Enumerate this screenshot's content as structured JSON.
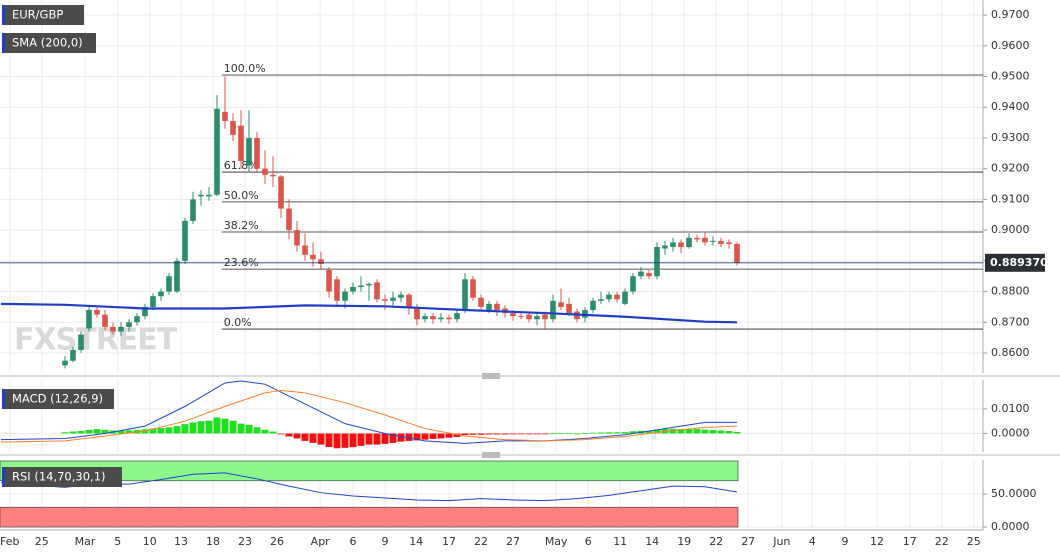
{
  "chart_data": [
    {
      "type": "candlestick",
      "legend": [
        "EUR/GBP",
        "SMA (200,0)"
      ],
      "watermark": "FXSTREET",
      "xlim": [
        -8.125,
        114.75
      ],
      "ylim": [
        0.8535,
        0.9749
      ],
      "yticks": [
        {
          "value": 0.86,
          "label": "0.8600"
        },
        {
          "value": 0.87,
          "label": "0.8700"
        },
        {
          "value": 0.88,
          "label": "0.8800"
        },
        {
          "value": 0.89,
          "label": "0.8900"
        },
        {
          "value": 0.9,
          "label": "0.9000"
        },
        {
          "value": 0.91,
          "label": "0.9100"
        },
        {
          "value": 0.92,
          "label": "0.9200"
        },
        {
          "value": 0.93,
          "label": "0.9300"
        },
        {
          "value": 0.94,
          "label": "0.9400"
        },
        {
          "value": 0.95,
          "label": "0.9500"
        },
        {
          "value": 0.96,
          "label": "0.9600"
        },
        {
          "value": 0.97,
          "label": "0.9700"
        }
      ],
      "up_color": "#2e8c6e",
      "down_color": "#d9574a",
      "candles": [
        [
          0.856,
          0.859,
          0.855,
          0.8575
        ],
        [
          0.8575,
          0.862,
          0.857,
          0.861
        ],
        [
          0.861,
          0.867,
          0.86,
          0.866
        ],
        [
          0.868,
          0.875,
          0.867,
          0.874
        ],
        [
          0.874,
          0.875,
          0.8715,
          0.8725
        ],
        [
          0.8725,
          0.874,
          0.8675,
          0.8685
        ],
        [
          0.8685,
          0.87,
          0.866,
          0.867
        ],
        [
          0.867,
          0.87,
          0.8655,
          0.8685
        ],
        [
          0.8685,
          0.871,
          0.867,
          0.87
        ],
        [
          0.87,
          0.873,
          0.869,
          0.872
        ],
        [
          0.872,
          0.876,
          0.871,
          0.875
        ],
        [
          0.875,
          0.8795,
          0.874,
          0.8785
        ],
        [
          0.8785,
          0.881,
          0.877,
          0.88
        ],
        [
          0.88,
          0.886,
          0.879,
          0.885
        ],
        [
          0.88,
          0.891,
          0.8795,
          0.89
        ],
        [
          0.89,
          0.904,
          0.889,
          0.903
        ],
        [
          0.903,
          0.9125,
          0.902,
          0.91
        ],
        [
          0.911,
          0.913,
          0.908,
          0.9115
        ],
        [
          0.911,
          0.914,
          0.9095,
          0.9115
        ],
        [
          0.9115,
          0.944,
          0.911,
          0.9395
        ],
        [
          0.9385,
          0.95,
          0.933,
          0.9355
        ],
        [
          0.9355,
          0.938,
          0.929,
          0.931
        ],
        [
          0.934,
          0.939,
          0.92,
          0.9225
        ],
        [
          0.921,
          0.939,
          0.919,
          0.93
        ],
        [
          0.93,
          0.932,
          0.919,
          0.92
        ],
        [
          0.92,
          0.926,
          0.915,
          0.918
        ],
        [
          0.918,
          0.924,
          0.914,
          0.9175
        ],
        [
          0.9175,
          0.918,
          0.904,
          0.907
        ],
        [
          0.907,
          0.91,
          0.897,
          0.9
        ],
        [
          0.9,
          0.903,
          0.893,
          0.895
        ],
        [
          0.895,
          0.899,
          0.89,
          0.892
        ],
        [
          0.892,
          0.896,
          0.888,
          0.8905
        ],
        [
          0.8905,
          0.893,
          0.887,
          0.889
        ],
        [
          0.887,
          0.888,
          0.878,
          0.88
        ],
        [
          0.884,
          0.885,
          0.875,
          0.877
        ],
        [
          0.877,
          0.881,
          0.8745,
          0.88
        ],
        [
          0.88,
          0.883,
          0.879,
          0.8815
        ],
        [
          0.8815,
          0.885,
          0.88,
          0.882
        ],
        [
          0.882,
          0.883,
          0.877,
          0.8825
        ],
        [
          0.883,
          0.884,
          0.8765,
          0.8775
        ],
        [
          0.8775,
          0.879,
          0.874,
          0.877
        ],
        [
          0.877,
          0.88,
          0.8755,
          0.878
        ],
        [
          0.878,
          0.88,
          0.8765,
          0.879
        ],
        [
          0.879,
          0.8795,
          0.8725,
          0.8745
        ],
        [
          0.8745,
          0.876,
          0.869,
          0.871
        ],
        [
          0.871,
          0.873,
          0.87,
          0.872
        ],
        [
          0.872,
          0.873,
          0.8695,
          0.871
        ],
        [
          0.871,
          0.873,
          0.87,
          0.8715
        ],
        [
          0.8715,
          0.8725,
          0.8695,
          0.871
        ],
        [
          0.871,
          0.874,
          0.87,
          0.873
        ],
        [
          0.874,
          0.886,
          0.873,
          0.884
        ],
        [
          0.884,
          0.885,
          0.877,
          0.878
        ],
        [
          0.878,
          0.879,
          0.8735,
          0.875
        ],
        [
          0.874,
          0.877,
          0.873,
          0.876
        ],
        [
          0.876,
          0.877,
          0.872,
          0.874
        ],
        [
          0.8745,
          0.8755,
          0.8715,
          0.873
        ],
        [
          0.873,
          0.874,
          0.8705,
          0.872
        ],
        [
          0.872,
          0.8735,
          0.871,
          0.8718
        ],
        [
          0.8725,
          0.8735,
          0.87,
          0.871
        ],
        [
          0.871,
          0.873,
          0.869,
          0.872
        ],
        [
          0.8725,
          0.8735,
          0.868,
          0.871
        ],
        [
          0.871,
          0.879,
          0.87,
          0.877
        ],
        [
          0.8765,
          0.881,
          0.874,
          0.875
        ],
        [
          0.876,
          0.878,
          0.872,
          0.873
        ],
        [
          0.8735,
          0.8745,
          0.87,
          0.871
        ],
        [
          0.8715,
          0.875,
          0.87,
          0.874
        ],
        [
          0.874,
          0.878,
          0.873,
          0.877
        ],
        [
          0.877,
          0.88,
          0.876,
          0.8775
        ],
        [
          0.8775,
          0.88,
          0.8765,
          0.879
        ],
        [
          0.879,
          0.88,
          0.8765,
          0.8775
        ],
        [
          0.876,
          0.881,
          0.8755,
          0.88
        ],
        [
          0.88,
          0.886,
          0.879,
          0.885
        ],
        [
          0.885,
          0.888,
          0.884,
          0.8865
        ],
        [
          0.886,
          0.887,
          0.884,
          0.885
        ],
        [
          0.885,
          0.896,
          0.884,
          0.8945
        ],
        [
          0.894,
          0.8965,
          0.892,
          0.895
        ],
        [
          0.8945,
          0.8975,
          0.893,
          0.896
        ],
        [
          0.896,
          0.897,
          0.8925,
          0.8945
        ],
        [
          0.8945,
          0.899,
          0.894,
          0.8975
        ],
        [
          0.8975,
          0.8985,
          0.896,
          0.897
        ],
        [
          0.8975,
          0.8995,
          0.895,
          0.896
        ],
        [
          0.8965,
          0.898,
          0.895,
          0.8965
        ],
        [
          0.8965,
          0.8975,
          0.8945,
          0.8955
        ],
        [
          0.896,
          0.897,
          0.894,
          0.8955
        ],
        [
          0.8955,
          0.896,
          0.8885,
          0.88937
        ]
      ],
      "sma": {
        "name": "SMA (200,0)",
        "color": "#1f3fc4",
        "x": [
          -8,
          0,
          10,
          20,
          30,
          40,
          50,
          60,
          70,
          80,
          84
        ],
        "values": [
          0.876,
          0.8757,
          0.8745,
          0.8745,
          0.8755,
          0.8752,
          0.874,
          0.873,
          0.8718,
          0.8702,
          0.87
        ]
      },
      "fib_levels": [
        {
          "label": "100.0%",
          "value": 0.9505
        },
        {
          "label": "61.8%",
          "value": 0.9189
        },
        {
          "label": "50.0%",
          "value": 0.9092
        },
        {
          "label": "38.2%",
          "value": 0.8994
        },
        {
          "label": "23.6%",
          "value": 0.8873
        },
        {
          "label": "0.0%",
          "value": 0.8678
        }
      ],
      "last_price": {
        "value": 0.88937,
        "label": "0.889370"
      }
    },
    {
      "type": "macd",
      "legend": "MACD (12,26,9)",
      "xlim": [
        -8.125,
        114.75
      ],
      "ylim": [
        -0.0075,
        0.0217
      ],
      "yticks": [
        {
          "value": 0.01,
          "label": "0.0100"
        },
        {
          "value": 0,
          "label": "0.0000"
        }
      ],
      "histogram": {
        "up_color": "#22dd22",
        "down_color": "#ee1111",
        "values": [
          0.0005,
          0.0008,
          0.001,
          0.0015,
          0.0018,
          0.0015,
          0.0012,
          0.0012,
          0.0013,
          0.0015,
          0.0017,
          0.002,
          0.0022,
          0.0025,
          0.003,
          0.0038,
          0.0045,
          0.005,
          0.0052,
          0.0065,
          0.006,
          0.0052,
          0.004,
          0.0035,
          0.0025,
          0.0015,
          0.0008,
          -0.0003,
          -0.0012,
          -0.002,
          -0.003,
          -0.0038,
          -0.0045,
          -0.0055,
          -0.006,
          -0.0058,
          -0.0055,
          -0.005,
          -0.0045,
          -0.0045,
          -0.0042,
          -0.0038,
          -0.0033,
          -0.003,
          -0.0028,
          -0.0025,
          -0.0022,
          -0.002,
          -0.0017,
          -0.0014,
          -0.0006,
          -0.0005,
          -0.0005,
          -0.0004,
          -0.0004,
          -0.0004,
          -0.0003,
          -0.0003,
          -0.0003,
          -0.0002,
          -0.0002,
          0.0001,
          0.0001,
          0.0001,
          0,
          0.0002,
          0.0003,
          0.0004,
          0.0005,
          0.0005,
          0.0006,
          0.0009,
          0.0011,
          0.0011,
          0.0016,
          0.0018,
          0.0019,
          0.0018,
          0.0019,
          0.0018,
          0.0016,
          0.0014,
          0.0012,
          0.001,
          0.0006
        ]
      },
      "series": [
        {
          "color": "#2244cc",
          "x": [
            -8,
            0,
            5,
            10,
            15,
            20,
            22,
            25,
            30,
            35,
            40,
            45,
            50,
            55,
            60,
            65,
            70,
            75,
            80,
            84
          ],
          "values": [
            -0.0025,
            -0.002,
            0,
            0.003,
            0.011,
            0.0205,
            0.0213,
            0.02,
            0.012,
            0.004,
            0,
            -0.003,
            -0.004,
            -0.003,
            -0.003,
            -0.002,
            -0.0005,
            0.002,
            0.0045,
            0.0045
          ]
        },
        {
          "color": "#ff7f27",
          "x": [
            -8,
            0,
            5,
            10,
            15,
            20,
            25,
            27,
            30,
            35,
            40,
            45,
            50,
            55,
            60,
            65,
            70,
            75,
            80,
            84
          ],
          "values": [
            -0.0035,
            -0.003,
            -0.001,
            0.001,
            0.005,
            0.011,
            0.0165,
            0.0175,
            0.0165,
            0.0125,
            0.0075,
            0.002,
            -0.001,
            -0.0025,
            -0.003,
            -0.0025,
            -0.0012,
            0.0008,
            0.0025,
            0.003
          ]
        }
      ]
    },
    {
      "type": "rsi",
      "legend": "RSI (14,70,30,1)",
      "xlim": [
        -8.125,
        114.75
      ],
      "ylim": [
        -4.5,
        101.5
      ],
      "yticks": [
        {
          "value": 50,
          "label": "50.0000"
        },
        {
          "value": 0,
          "label": "0.0000"
        }
      ],
      "bands": [
        {
          "from": 70,
          "to": 100,
          "color": "#8cf58c"
        },
        {
          "from": 0,
          "to": 30,
          "color": "#ff8080"
        }
      ],
      "series": [
        {
          "color": "#2244cc",
          "x": [
            -8,
            0,
            4,
            8,
            12,
            16,
            20,
            24,
            28,
            32,
            36,
            40,
            44,
            48,
            52,
            56,
            60,
            64,
            68,
            72,
            76,
            80,
            84
          ],
          "values": [
            67,
            60,
            66,
            65,
            72,
            80,
            82,
            73,
            62,
            52,
            47,
            44,
            41,
            40,
            43,
            41,
            40,
            43,
            48,
            55,
            62,
            61,
            53
          ]
        }
      ],
      "xticks": [
        {
          "value": -6.9,
          "label": "Feb"
        },
        {
          "value": -2.9,
          "label": "25"
        },
        {
          "value": 2.5,
          "label": "Mar"
        },
        {
          "value": 6.6,
          "label": "5"
        },
        {
          "value": 10.6,
          "label": "10"
        },
        {
          "value": 14.5,
          "label": "13"
        },
        {
          "value": 18.5,
          "label": "18"
        },
        {
          "value": 22.5,
          "label": "23"
        },
        {
          "value": 26.5,
          "label": "26"
        },
        {
          "value": 31.9,
          "label": "Apr"
        },
        {
          "value": 36,
          "label": "6"
        },
        {
          "value": 40,
          "label": "9"
        },
        {
          "value": 43.9,
          "label": "14"
        },
        {
          "value": 48,
          "label": "17"
        },
        {
          "value": 52,
          "label": "22"
        },
        {
          "value": 56,
          "label": "27"
        },
        {
          "value": 61.4,
          "label": "May"
        },
        {
          "value": 65.4,
          "label": "6"
        },
        {
          "value": 69.4,
          "label": "11"
        },
        {
          "value": 73.4,
          "label": "14"
        },
        {
          "value": 77.4,
          "label": "19"
        },
        {
          "value": 81.4,
          "label": "22"
        },
        {
          "value": 85.4,
          "label": "27"
        },
        {
          "value": 89.6,
          "label": "Jun"
        },
        {
          "value": 93.4,
          "label": "4"
        },
        {
          "value": 97.5,
          "label": "9"
        },
        {
          "value": 101.5,
          "label": "12"
        },
        {
          "value": 105.6,
          "label": "17"
        },
        {
          "value": 109.6,
          "label": "22"
        },
        {
          "value": 113.6,
          "label": "25"
        }
      ]
    }
  ]
}
